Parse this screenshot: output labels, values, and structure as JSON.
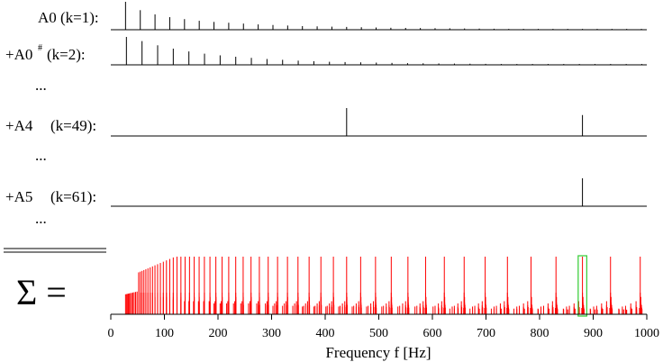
{
  "chart_data": {
    "type": "bar",
    "xlabel": "Frequency f [Hz]",
    "xlim": [
      0,
      1000
    ],
    "xticks": [
      "0",
      "100",
      "200",
      "300",
      "400",
      "500",
      "600",
      "700",
      "800",
      "900",
      "1000"
    ],
    "highlight_range": [
      872,
      888
    ],
    "highlight_color": "#33cc33",
    "sum_color": "#ff0000",
    "series": [
      {
        "note": "A0",
        "sup": "",
        "k": "(k=1):",
        "f0": 27.5,
        "harmonics": [
          1,
          0.7,
          0.55,
          0.45,
          0.38,
          0.32,
          0.28,
          0.25,
          0.22,
          0.19,
          0.17,
          0.15,
          0.13,
          0.12,
          0.11,
          0.1,
          0.09,
          0.08,
          0.07,
          0.065,
          0.06,
          0.055,
          0.05,
          0.045,
          0.04,
          0.035,
          0.03,
          0.03,
          0.03,
          0.03,
          0.03,
          0.03,
          0.03,
          0.03,
          0.03,
          0.03
        ]
      },
      {
        "note": "+A0",
        "sup": "#",
        "k": "(k=2):",
        "f0": 29.14,
        "harmonics": [
          1,
          0.85,
          0.7,
          0.58,
          0.48,
          0.4,
          0.34,
          0.29,
          0.25,
          0.21,
          0.18,
          0.15,
          0.13,
          0.11,
          0.1,
          0.09,
          0.08,
          0.07,
          0.06,
          0.055,
          0.05,
          0.045,
          0.04,
          0.035,
          0.03,
          0.03,
          0.03,
          0.03,
          0.03,
          0.03,
          0.03,
          0.03,
          0.03,
          0.03
        ]
      },
      {
        "note": "+A4",
        "sup": "",
        "k": "(k=49):",
        "f0": 440,
        "harmonics": [
          1,
          0.75
        ]
      },
      {
        "note": "+A5",
        "sup": "",
        "k": "(k=61):",
        "f0": 880,
        "harmonics": [
          1
        ]
      }
    ],
    "sum_label": "Σ ="
  },
  "ellipsis": "..."
}
